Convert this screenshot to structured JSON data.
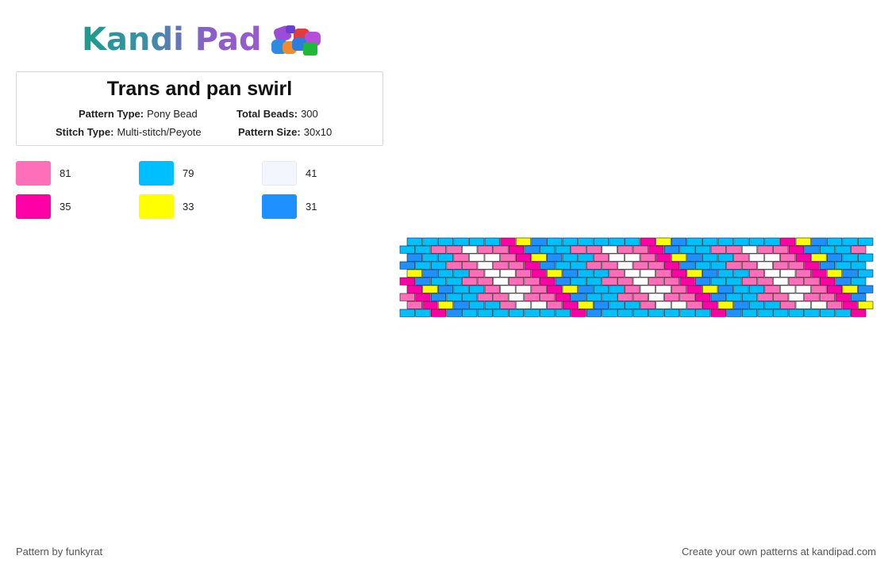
{
  "brand": {
    "name": "Kandi Pad"
  },
  "pattern": {
    "title": "Trans and pan swirl",
    "type_label": "Pattern Type:",
    "type_value": "Pony Bead",
    "beads_label": "Total Beads:",
    "beads_value": "300",
    "stitch_label": "Stitch Type:",
    "stitch_value": "Multi-stitch/Peyote",
    "size_label": "Pattern Size:",
    "size_value": "30x10"
  },
  "colors": [
    {
      "hex": "#ff6eb9",
      "count": "81"
    },
    {
      "hex": "#00bfff",
      "count": "79"
    },
    {
      "hex": "#f4f6fd",
      "count": "41"
    },
    {
      "hex": "#ff00a6",
      "count": "35"
    },
    {
      "hex": "#ffff00",
      "count": "33"
    },
    {
      "hex": "#1e90ff",
      "count": "31"
    }
  ],
  "footer": {
    "credit": "Pattern by funkyrat",
    "cta": "Create your own patterns at kandipad.com"
  }
}
